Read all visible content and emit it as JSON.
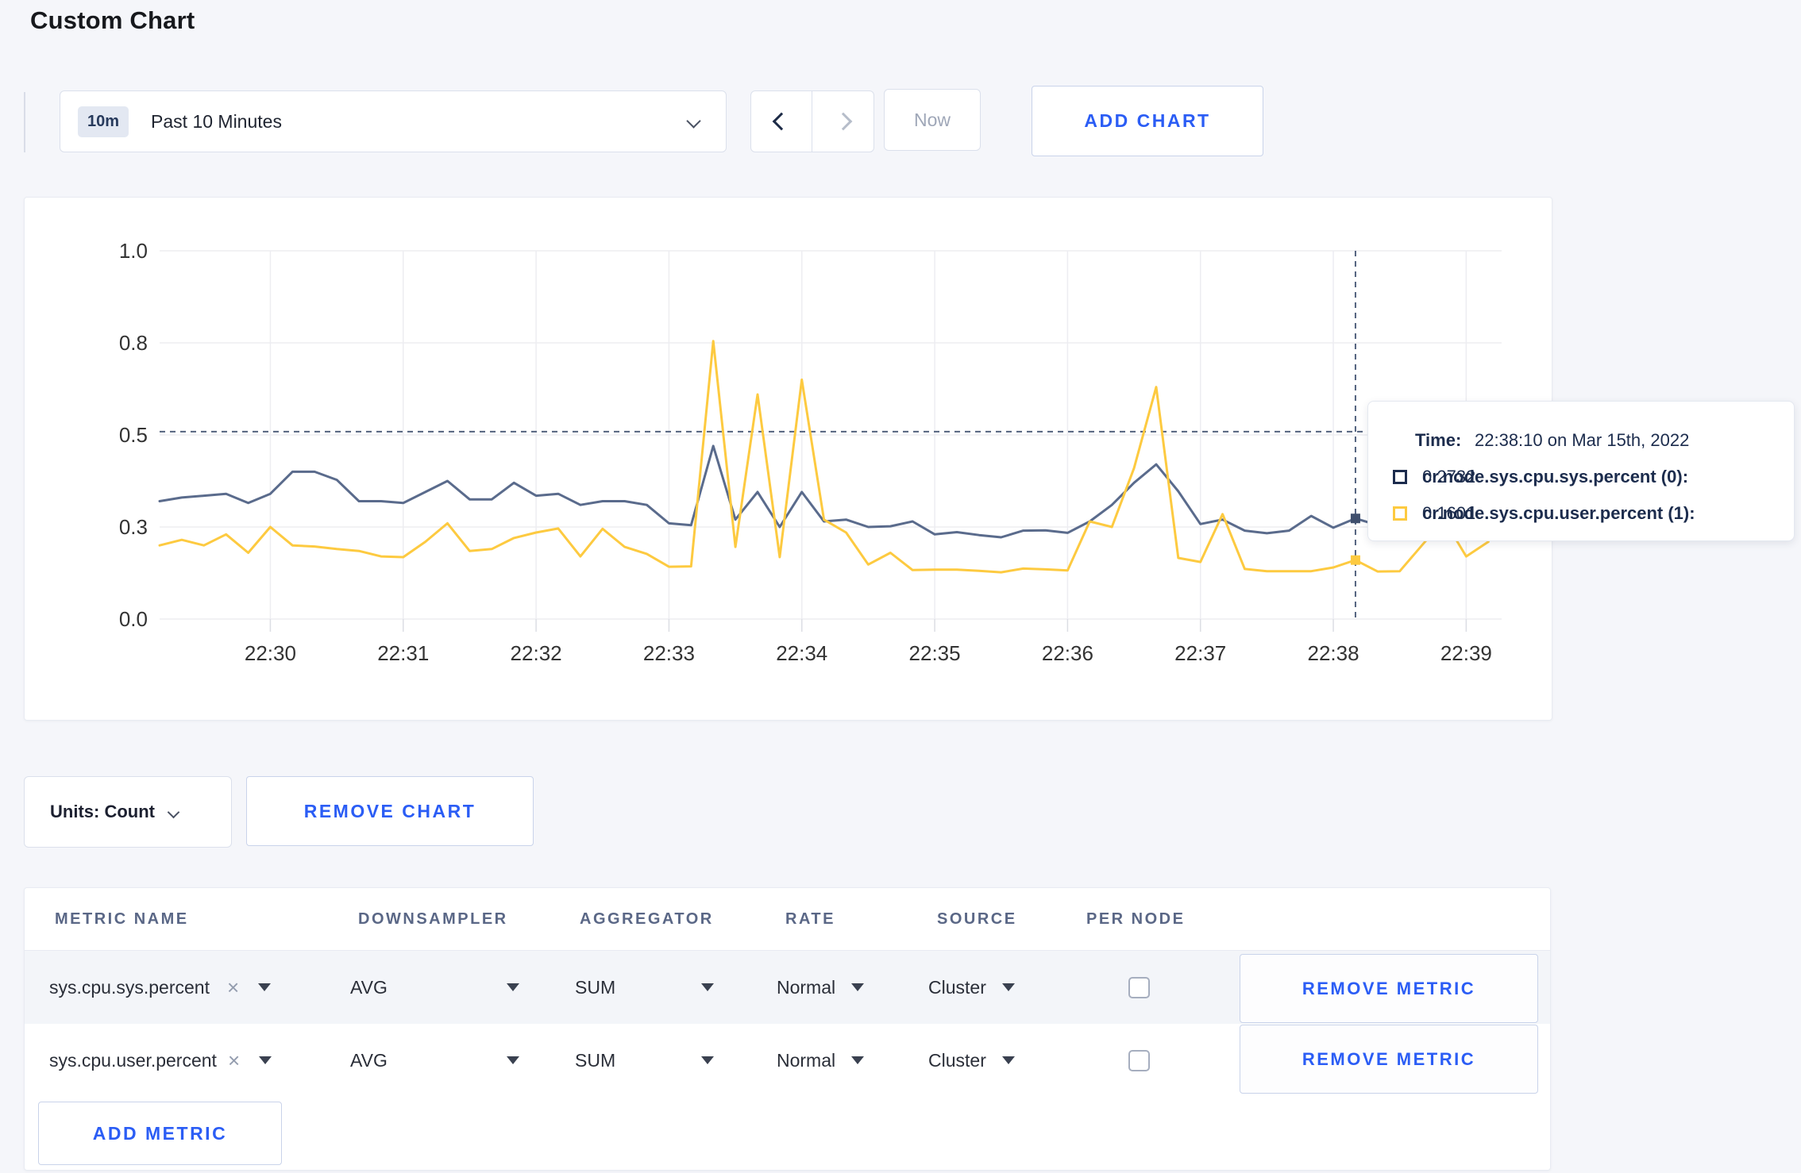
{
  "page": {
    "title": "Custom Chart",
    "background": "#f5f6fa"
  },
  "toolbar": {
    "time_range": {
      "badge": "10m",
      "label": "Past 10 Minutes"
    },
    "now_label": "Now",
    "add_chart_label": "ADD CHART"
  },
  "chart_data": {
    "type": "line",
    "title": "",
    "xlabel": "",
    "ylabel": "",
    "ylim": [
      0,
      1
    ],
    "grid": true,
    "x_start": "22:29:10",
    "x_step_seconds": 10,
    "times": [
      "22:29:10",
      "22:29:20",
      "22:29:30",
      "22:29:40",
      "22:29:50",
      "22:30:00",
      "22:30:10",
      "22:30:20",
      "22:30:30",
      "22:30:40",
      "22:30:50",
      "22:31:00",
      "22:31:10",
      "22:31:20",
      "22:31:30",
      "22:31:40",
      "22:31:50",
      "22:32:00",
      "22:32:10",
      "22:32:20",
      "22:32:30",
      "22:32:40",
      "22:32:50",
      "22:33:00",
      "22:33:10",
      "22:33:20",
      "22:33:30",
      "22:33:40",
      "22:33:50",
      "22:34:00",
      "22:34:10",
      "22:34:20",
      "22:34:30",
      "22:34:40",
      "22:34:50",
      "22:35:00",
      "22:35:10",
      "22:35:20",
      "22:35:30",
      "22:35:40",
      "22:35:50",
      "22:36:00",
      "22:36:10",
      "22:36:20",
      "22:36:30",
      "22:36:40",
      "22:36:50",
      "22:37:00",
      "22:37:10",
      "22:37:20",
      "22:37:30",
      "22:37:40",
      "22:37:50",
      "22:38:00",
      "22:38:10",
      "22:38:20",
      "22:38:30",
      "22:38:40",
      "22:38:50",
      "22:39:00",
      "22:39:10"
    ],
    "series": [
      {
        "name": "cr.node.sys.cpu.sys.percent (0)",
        "color": "#5a6b8c",
        "values": [
          0.32,
          0.33,
          0.335,
          0.34,
          0.315,
          0.34,
          0.4,
          0.4,
          0.378,
          0.32,
          0.32,
          0.315,
          0.345,
          0.375,
          0.325,
          0.325,
          0.37,
          0.335,
          0.34,
          0.31,
          0.32,
          0.32,
          0.31,
          0.26,
          0.255,
          0.47,
          0.27,
          0.345,
          0.25,
          0.345,
          0.265,
          0.27,
          0.25,
          0.252,
          0.265,
          0.23,
          0.236,
          0.228,
          0.222,
          0.24,
          0.241,
          0.234,
          0.265,
          0.31,
          0.37,
          0.42,
          0.347,
          0.258,
          0.27,
          0.24,
          0.233,
          0.24,
          0.28,
          0.248,
          0.2732,
          0.255,
          0.27,
          0.29,
          0.3,
          0.29,
          0.3
        ]
      },
      {
        "name": "cr.node.sys.cpu.user.percent (1)",
        "color": "#fdca40",
        "values": [
          0.2,
          0.215,
          0.2,
          0.23,
          0.18,
          0.25,
          0.2,
          0.197,
          0.19,
          0.185,
          0.17,
          0.168,
          0.21,
          0.26,
          0.185,
          0.19,
          0.22,
          0.235,
          0.246,
          0.17,
          0.245,
          0.196,
          0.177,
          0.142,
          0.143,
          0.755,
          0.196,
          0.61,
          0.168,
          0.65,
          0.27,
          0.235,
          0.148,
          0.18,
          0.133,
          0.134,
          0.134,
          0.131,
          0.127,
          0.137,
          0.135,
          0.132,
          0.265,
          0.25,
          0.41,
          0.63,
          0.166,
          0.155,
          0.285,
          0.136,
          0.13,
          0.13,
          0.13,
          0.14,
          0.1601,
          0.129,
          0.13,
          0.2,
          0.27,
          0.17,
          0.21
        ]
      }
    ],
    "x_ticks": [
      "22:30",
      "22:31",
      "22:32",
      "22:33",
      "22:34",
      "22:35",
      "22:36",
      "22:37",
      "22:38",
      "22:39"
    ],
    "y_ticks": [
      {
        "value": 0.0,
        "label": "0.0"
      },
      {
        "value": 0.25,
        "label": "0.3"
      },
      {
        "value": 0.5,
        "label": "0.5"
      },
      {
        "value": 0.75,
        "label": "0.8"
      },
      {
        "value": 1.0,
        "label": "1.0"
      }
    ],
    "legend_position": "tooltip",
    "crosshair": {
      "time": "22:38:10",
      "y_value": 0.509
    },
    "highlight_points": [
      {
        "series": 0,
        "time": "22:38:10",
        "value": 0.2732
      },
      {
        "series": 1,
        "time": "22:38:10",
        "value": 0.1601
      }
    ]
  },
  "tooltip": {
    "time_label": "Time:",
    "time_value": "22:38:10 on Mar 15th, 2022",
    "rows": [
      {
        "name": "cr.node.sys.cpu.sys.percent (0):",
        "value": "0.2732",
        "color": "#1c2c4d"
      },
      {
        "name": "cr.node.sys.cpu.user.percent (1):",
        "value": "0.1601",
        "color": "#fdca40"
      }
    ]
  },
  "chart_footer": {
    "units_label": "Units: Count",
    "remove_chart_label": "REMOVE CHART"
  },
  "metrics_table": {
    "columns": [
      "METRIC NAME",
      "DOWNSAMPLER",
      "AGGREGATOR",
      "RATE",
      "SOURCE",
      "PER NODE"
    ],
    "rows": [
      {
        "metric": "sys.cpu.sys.percent",
        "downsampler": "AVG",
        "aggregator": "SUM",
        "rate": "Normal",
        "source": "Cluster",
        "per_node_checked": false,
        "remove_label": "REMOVE METRIC"
      },
      {
        "metric": "sys.cpu.user.percent",
        "downsampler": "AVG",
        "aggregator": "SUM",
        "rate": "Normal",
        "source": "Cluster",
        "per_node_checked": false,
        "remove_label": "REMOVE METRIC"
      }
    ],
    "add_metric_label": "ADD METRIC"
  },
  "colors": {
    "accent_blue": "#2b5df5",
    "series_sys": "#5a6b8c",
    "series_user": "#fdca40",
    "gridline": "#ededf1",
    "crosshair": "#53627e",
    "axis_text": "#333333"
  }
}
